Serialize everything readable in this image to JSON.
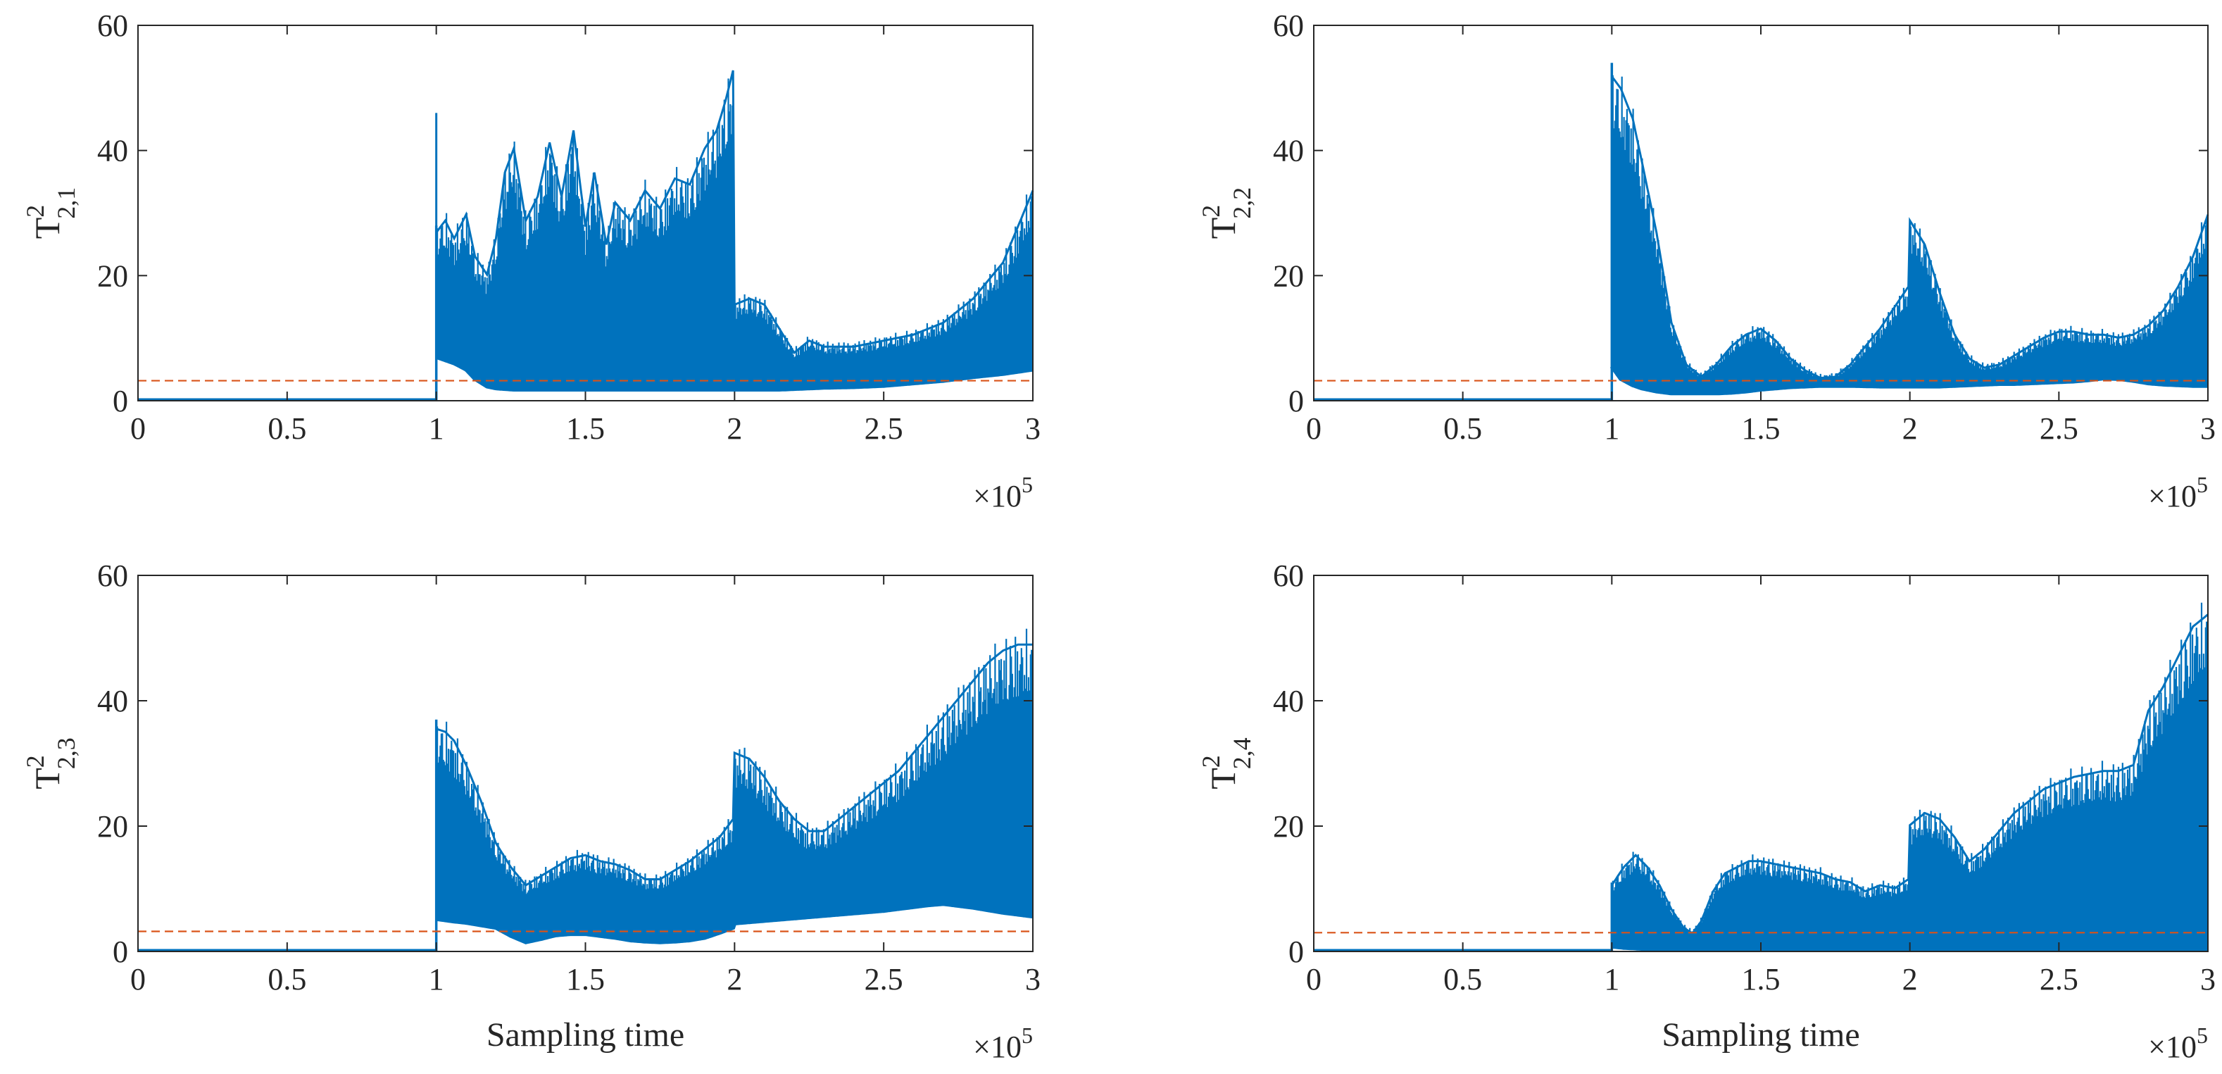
{
  "figure": {
    "x_multiplier_base": "×10",
    "x_multiplier_exp": "5"
  },
  "chart_data": [
    {
      "type": "area",
      "ylabel": {
        "main": "T",
        "sup": "2",
        "sub": "2,1"
      },
      "xlabel": "",
      "xlim": [
        0,
        300000
      ],
      "ylim": [
        0,
        60
      ],
      "x_ticks": [
        0,
        50000,
        100000,
        150000,
        200000,
        250000,
        300000
      ],
      "x_tick_labels": [
        "0",
        "0.5",
        "1",
        "1.5",
        "2",
        "2.5",
        "3"
      ],
      "y_ticks": [
        0,
        20,
        40,
        60
      ],
      "y_tick_labels": [
        "0",
        "20",
        "40",
        "60"
      ],
      "threshold": 3.2,
      "spike": {
        "x": 100000,
        "y": 46
      },
      "envelope_x": [
        0,
        99999,
        100000,
        103000,
        106000,
        110000,
        113000,
        117000,
        120000,
        123000,
        126000,
        130000,
        134000,
        138000,
        142000,
        146000,
        150000,
        153000,
        157000,
        160000,
        165000,
        170000,
        175000,
        180000,
        185000,
        190000,
        194000,
        197000,
        199500,
        200000,
        205000,
        210000,
        215000,
        220000,
        225000,
        230000,
        240000,
        250000,
        260000,
        270000,
        280000,
        290000,
        300000
      ],
      "series": [
        {
          "name": "",
          "role": "upper",
          "values": [
            0,
            0,
            28,
            30,
            27,
            31,
            24,
            21,
            27,
            38,
            42,
            30,
            34,
            43,
            34,
            45,
            29,
            38,
            26,
            33,
            30,
            35,
            32,
            37,
            36,
            42,
            45,
            50,
            55,
            16,
            17,
            16,
            12,
            8,
            10,
            9,
            9,
            10,
            11,
            13,
            17,
            23,
            35
          ]
        },
        {
          "name": "",
          "role": "lower",
          "values": [
            0,
            0,
            7,
            6.5,
            6,
            5,
            3.5,
            2.3,
            2,
            1.9,
            1.8,
            1.8,
            1.8,
            1.8,
            1.8,
            1.8,
            1.8,
            1.8,
            1.8,
            1.8,
            1.8,
            1.8,
            1.8,
            1.8,
            1.8,
            1.8,
            1.8,
            1.8,
            1.8,
            1.8,
            1.8,
            1.8,
            1.8,
            1.9,
            2,
            2.1,
            2.2,
            2.4,
            2.8,
            3.2,
            3.8,
            4.3,
            5
          ]
        }
      ]
    },
    {
      "type": "area",
      "ylabel": {
        "main": "T",
        "sup": "2",
        "sub": "2,2"
      },
      "xlabel": "",
      "xlim": [
        0,
        300000
      ],
      "ylim": [
        0,
        60
      ],
      "x_ticks": [
        0,
        50000,
        100000,
        150000,
        200000,
        250000,
        300000
      ],
      "x_tick_labels": [
        "0",
        "0.5",
        "1",
        "1.5",
        "2",
        "2.5",
        "3"
      ],
      "y_ticks": [
        0,
        20,
        40,
        60
      ],
      "y_tick_labels": [
        "0",
        "20",
        "40",
        "60"
      ],
      "threshold": 3.2,
      "envelope_x": [
        0,
        99999,
        100000,
        103000,
        107000,
        110000,
        115000,
        120000,
        125000,
        130000,
        135000,
        140000,
        145000,
        150000,
        155000,
        160000,
        165000,
        170000,
        175000,
        180000,
        190000,
        199500,
        200000,
        205000,
        210000,
        215000,
        220000,
        225000,
        230000,
        235000,
        240000,
        245000,
        250000,
        255000,
        260000,
        265000,
        270000,
        275000,
        280000,
        285000,
        290000,
        295000,
        300000
      ],
      "series": [
        {
          "name": "",
          "role": "upper",
          "values": [
            0,
            0,
            54,
            52,
            47,
            40,
            28,
            13,
            6,
            4,
            6,
            9,
            11,
            12,
            10,
            7,
            5,
            3.8,
            4,
            6,
            12,
            19,
            30,
            26,
            18,
            11,
            7,
            5.5,
            6,
            7.5,
            9,
            10.5,
            11.5,
            11.5,
            11,
            11,
            10.5,
            11,
            12.5,
            15,
            19,
            24,
            31
          ]
        },
        {
          "name": "",
          "role": "lower",
          "values": [
            0,
            0,
            5.5,
            3.5,
            2.5,
            2,
            1.5,
            1.2,
            1.2,
            1.2,
            1.2,
            1.3,
            1.5,
            1.8,
            2,
            2.2,
            2.3,
            2.4,
            2.4,
            2.4,
            2.3,
            2.3,
            2.3,
            2.3,
            2.3,
            2.4,
            2.5,
            2.6,
            2.7,
            2.7,
            2.8,
            2.9,
            3,
            3.1,
            3.3,
            3.6,
            3.5,
            3.2,
            2.8,
            2.6,
            2.5,
            2.4,
            2.4
          ]
        }
      ]
    },
    {
      "type": "area",
      "ylabel": {
        "main": "T",
        "sup": "2",
        "sub": "2,3"
      },
      "xlabel": "Sampling time",
      "xlim": [
        0,
        300000
      ],
      "ylim": [
        0,
        60
      ],
      "x_ticks": [
        0,
        50000,
        100000,
        150000,
        200000,
        250000,
        300000
      ],
      "x_tick_labels": [
        "0",
        "0.5",
        "1",
        "1.5",
        "2",
        "2.5",
        "3"
      ],
      "y_ticks": [
        0,
        20,
        40,
        60
      ],
      "y_tick_labels": [
        "0",
        "20",
        "40",
        "60"
      ],
      "threshold": 3.2,
      "envelope_x": [
        0,
        99999,
        100000,
        103000,
        106000,
        110000,
        115000,
        120000,
        125000,
        130000,
        135000,
        140000,
        145000,
        150000,
        155000,
        160000,
        165000,
        170000,
        175000,
        180000,
        185000,
        190000,
        195000,
        199500,
        200000,
        205000,
        210000,
        215000,
        220000,
        225000,
        230000,
        235000,
        240000,
        245000,
        250000,
        255000,
        260000,
        265000,
        270000,
        275000,
        280000,
        285000,
        290000,
        295000,
        300000
      ],
      "series": [
        {
          "name": "",
          "role": "upper",
          "values": [
            0,
            0,
            37,
            36.5,
            35,
            31,
            25,
            18,
            14,
            11,
            12.5,
            14,
            15.5,
            16,
            15,
            14.5,
            13.5,
            12,
            12,
            13.5,
            15,
            17,
            19,
            22,
            33,
            32,
            29,
            25,
            22,
            20,
            20,
            22,
            24,
            26,
            28,
            30,
            33,
            36,
            39,
            42,
            45,
            48,
            50,
            51,
            51
          ]
        },
        {
          "name": "",
          "role": "lower",
          "values": [
            0,
            0,
            5.2,
            5,
            4.8,
            4.6,
            4.2,
            3.8,
            2.5,
            1.5,
            2,
            2.6,
            2.8,
            2.8,
            2.5,
            2.2,
            1.8,
            1.6,
            1.5,
            1.6,
            1.8,
            2.2,
            3,
            3.8,
            4.5,
            4.7,
            4.9,
            5.1,
            5.3,
            5.5,
            5.7,
            5.9,
            6.1,
            6.3,
            6.5,
            6.8,
            7.1,
            7.4,
            7.6,
            7.3,
            7,
            6.6,
            6.2,
            5.9,
            5.6
          ]
        }
      ]
    },
    {
      "type": "area",
      "ylabel": {
        "main": "T",
        "sup": "2",
        "sub": "2,4"
      },
      "xlabel": "Sampling time",
      "xlim": [
        0,
        300000
      ],
      "ylim": [
        0,
        60
      ],
      "x_ticks": [
        0,
        50000,
        100000,
        150000,
        200000,
        250000,
        300000
      ],
      "x_tick_labels": [
        "0",
        "0.5",
        "1",
        "1.5",
        "2",
        "2.5",
        "3"
      ],
      "y_ticks": [
        0,
        20,
        40,
        60
      ],
      "y_tick_labels": [
        "0",
        "20",
        "40",
        "60"
      ],
      "threshold": 3.0,
      "envelope_x": [
        0,
        99999,
        100000,
        104000,
        108000,
        112000,
        116000,
        120000,
        124000,
        127000,
        130000,
        134000,
        138000,
        142000,
        146000,
        150000,
        155000,
        160000,
        165000,
        170000,
        175000,
        180000,
        185000,
        190000,
        195000,
        199500,
        200000,
        205000,
        210000,
        215000,
        220000,
        225000,
        230000,
        235000,
        240000,
        245000,
        250000,
        255000,
        260000,
        265000,
        270000,
        275000,
        280000,
        285000,
        290000,
        295000,
        300000
      ],
      "series": [
        {
          "name": "",
          "role": "upper",
          "values": [
            0,
            0,
            11,
            14,
            16,
            14,
            11,
            7,
            4,
            3,
            5,
            10,
            13,
            14,
            15,
            15,
            14.5,
            14,
            13.5,
            13,
            12,
            11.5,
            10,
            11,
            10.5,
            12,
            21,
            23,
            22,
            19,
            15,
            17,
            20,
            23,
            25,
            27,
            28,
            29,
            29.5,
            30,
            30,
            31,
            40,
            44,
            49,
            54,
            56
          ]
        },
        {
          "name": "",
          "role": "lower",
          "values": [
            0,
            0,
            0.8,
            0.6,
            0.5,
            0.4,
            0.3,
            0.3,
            0.3,
            0.3,
            0.3,
            0.3,
            0.3,
            0.3,
            0.3,
            0.3,
            0.3,
            0.3,
            0.3,
            0.3,
            0.3,
            0.3,
            0.3,
            0.3,
            0.3,
            0.3,
            0.4,
            0.4,
            0.4,
            0.4,
            0.4,
            0.4,
            0.4,
            0.4,
            0.4,
            0.4,
            0.4,
            0.4,
            0.4,
            0.4,
            0.4,
            0.4,
            0.4,
            0.4,
            0.4,
            0.4,
            0.4
          ]
        }
      ]
    }
  ]
}
